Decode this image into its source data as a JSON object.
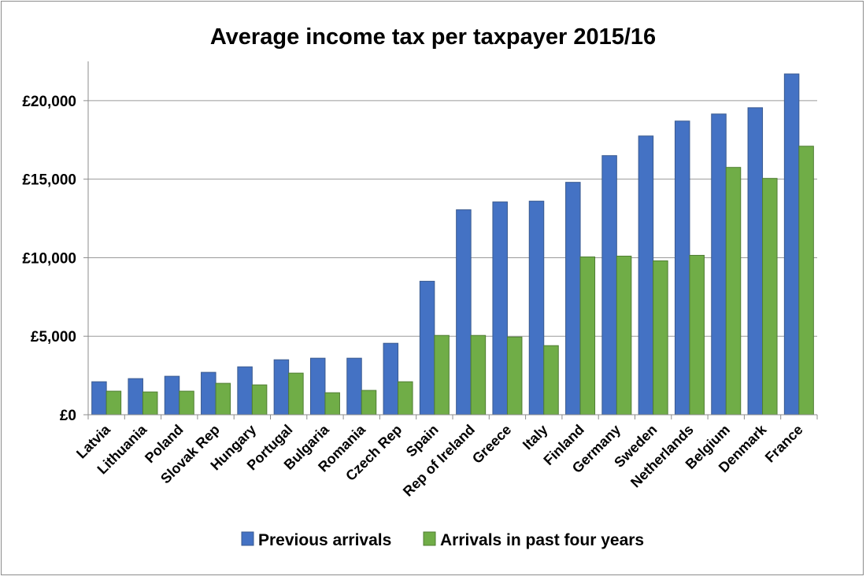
{
  "chart_data": {
    "type": "bar",
    "title": "Average income tax per taxpayer 2015/16",
    "xlabel": "",
    "ylabel": "",
    "ylim": [
      0,
      22500
    ],
    "yticks": [
      0,
      5000,
      10000,
      15000,
      20000
    ],
    "ytick_labels": [
      "£0",
      "£5,000",
      "£10,000",
      "£15,000",
      "£20,000"
    ],
    "grid": true,
    "legend_position": "bottom",
    "categories": [
      "Latvia",
      "Lithuania",
      "Poland",
      "Slovak Rep",
      "Hungary",
      "Portugal",
      "Bulgaria",
      "Romania",
      "Czech Rep",
      "Spain",
      "Rep of Ireland",
      "Greece",
      "Italy",
      "Finland",
      "Germany",
      "Sweden",
      "Netherlands",
      "Belgium",
      "Denmark",
      "France"
    ],
    "series": [
      {
        "name": "Previous arrivals",
        "color": "#4472C4",
        "values": [
          2100,
          2300,
          2450,
          2700,
          3050,
          3500,
          3600,
          3600,
          4550,
          8500,
          13050,
          13550,
          13600,
          14800,
          16500,
          17750,
          18700,
          19150,
          19550,
          21700
        ]
      },
      {
        "name": "Arrivals in past four years",
        "color": "#70AD47",
        "values": [
          1500,
          1450,
          1500,
          2000,
          1900,
          2650,
          1400,
          1550,
          2100,
          5050,
          5050,
          4950,
          4400,
          10050,
          10100,
          9800,
          10150,
          15750,
          15050,
          17100
        ]
      }
    ]
  }
}
